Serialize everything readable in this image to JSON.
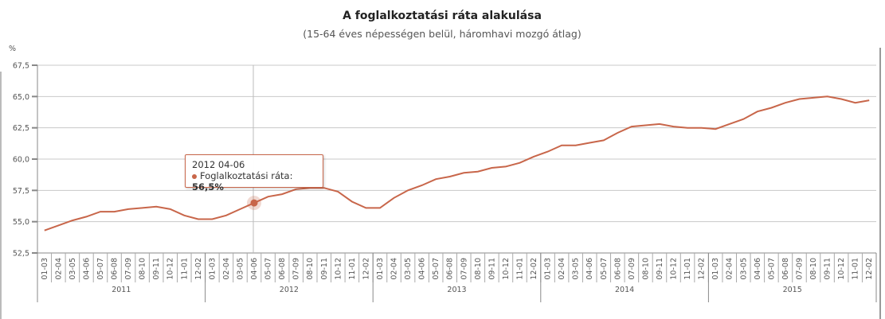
{
  "chart_data": {
    "type": "line",
    "title": "A foglalkoztatási ráta alakulása",
    "subtitle": "(15-64 éves népességen belül, háromhavi mozgó átlag)",
    "ylabel": "%",
    "ylim": [
      52.5,
      67.5
    ],
    "yticks": [
      "52,5",
      "55,0",
      "57,5",
      "60,0",
      "62,5",
      "65,0",
      "67,5"
    ],
    "ytick_values": [
      52.5,
      55,
      57.5,
      60,
      62.5,
      65,
      67.5
    ],
    "grid": true,
    "period_labels": [
      "01-03",
      "02-04",
      "03-05",
      "04-06",
      "05-07",
      "06-08",
      "07-09",
      "08-10",
      "09-11",
      "10-12",
      "11-01",
      "12-02"
    ],
    "years": [
      "2011",
      "2012",
      "2013",
      "2014",
      "2015"
    ],
    "series": [
      {
        "name": "Foglalkoztatási ráta",
        "color": "#c8664a",
        "values": [
          54.3,
          54.7,
          55.1,
          55.4,
          55.8,
          55.8,
          56.0,
          56.1,
          56.2,
          56.0,
          55.5,
          55.2,
          55.2,
          55.5,
          56.0,
          56.5,
          57.0,
          57.2,
          57.6,
          57.7,
          57.7,
          57.4,
          56.6,
          56.1,
          56.1,
          56.9,
          57.5,
          57.9,
          58.4,
          58.6,
          58.9,
          59.0,
          59.3,
          59.4,
          59.7,
          60.2,
          60.6,
          61.1,
          61.1,
          61.3,
          61.5,
          62.1,
          62.6,
          62.7,
          62.8,
          62.6,
          62.5,
          62.5,
          62.4,
          62.8,
          63.2,
          63.8,
          64.1,
          64.5,
          64.8,
          64.9,
          65.0,
          64.8,
          64.5,
          64.7
        ]
      }
    ],
    "tooltip": {
      "index": 15,
      "header": "2012 04-06",
      "series_label": "Foglalkoztatási ráta:",
      "value": "56,5%"
    }
  }
}
